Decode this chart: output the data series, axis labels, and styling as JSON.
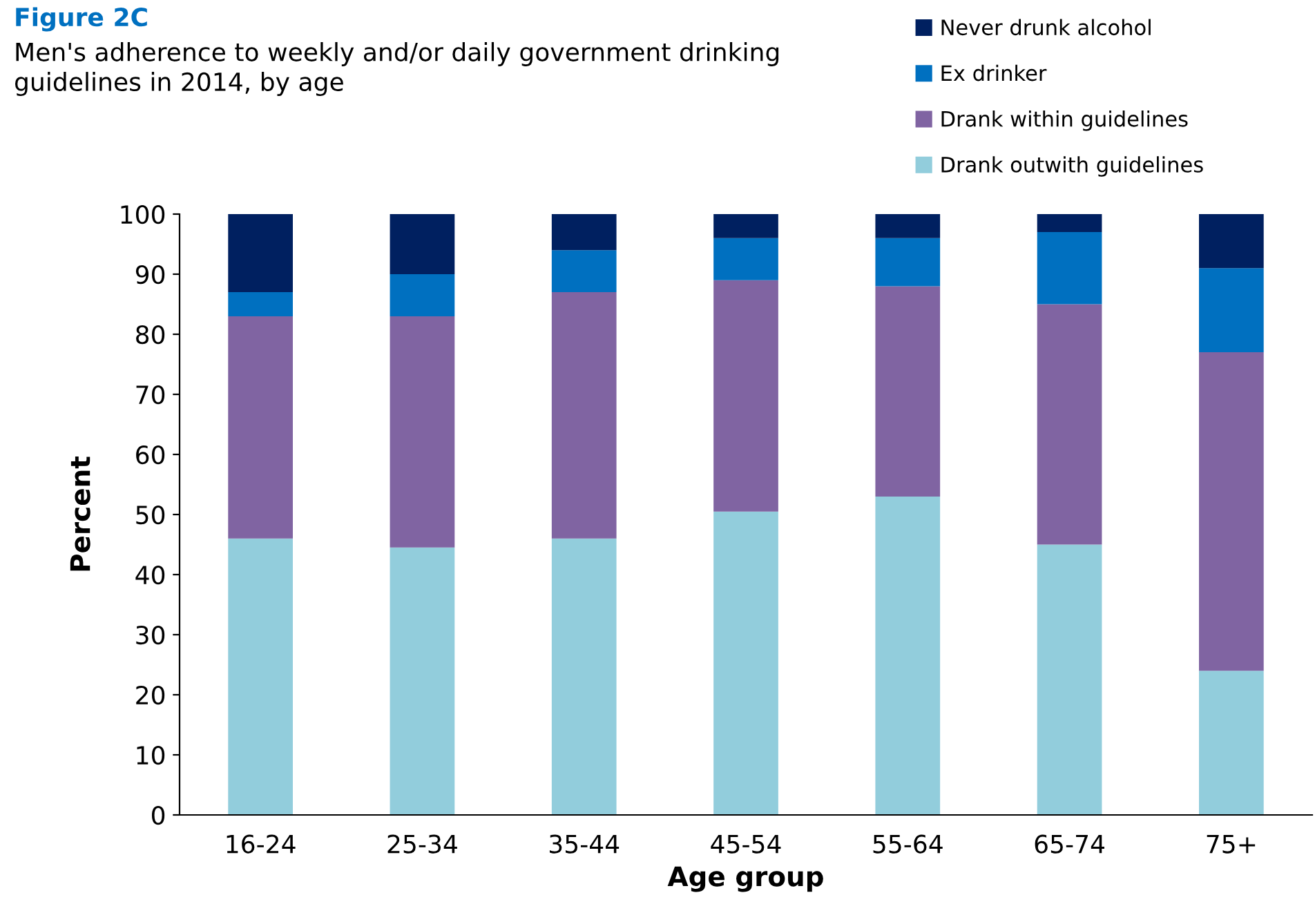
{
  "chart_data": {
    "type": "bar",
    "stacked": true,
    "title": "Figure 2C",
    "subtitle": "Men's adherence to weekly and/or daily government drinking\nguidelines in 2014, by age",
    "xlabel": "Age group",
    "ylabel": "Percent",
    "categories": [
      "16-24",
      "25-34",
      "35-44",
      "45-54",
      "55-64",
      "65-74",
      "75+"
    ],
    "series": [
      {
        "name": "Drank outwith guidelines",
        "color": "#92cddc",
        "values": [
          46,
          44.5,
          46,
          50.5,
          53,
          45,
          24
        ]
      },
      {
        "name": "Drank within guidelines",
        "color": "#8064a2",
        "values": [
          37,
          38.5,
          41,
          38.5,
          35,
          40,
          53
        ]
      },
      {
        "name": "Ex drinker",
        "color": "#0070c0",
        "values": [
          4,
          7,
          7,
          7,
          8,
          12,
          14
        ]
      },
      {
        "name": "Never drunk alcohol",
        "color": "#002060",
        "values": [
          13,
          10,
          6,
          4,
          4,
          3,
          9
        ]
      }
    ],
    "ylim": [
      0,
      100
    ],
    "yticks": [
      0,
      10,
      20,
      30,
      40,
      50,
      60,
      70,
      80,
      90,
      100
    ],
    "grid": false,
    "legend": "top right"
  }
}
